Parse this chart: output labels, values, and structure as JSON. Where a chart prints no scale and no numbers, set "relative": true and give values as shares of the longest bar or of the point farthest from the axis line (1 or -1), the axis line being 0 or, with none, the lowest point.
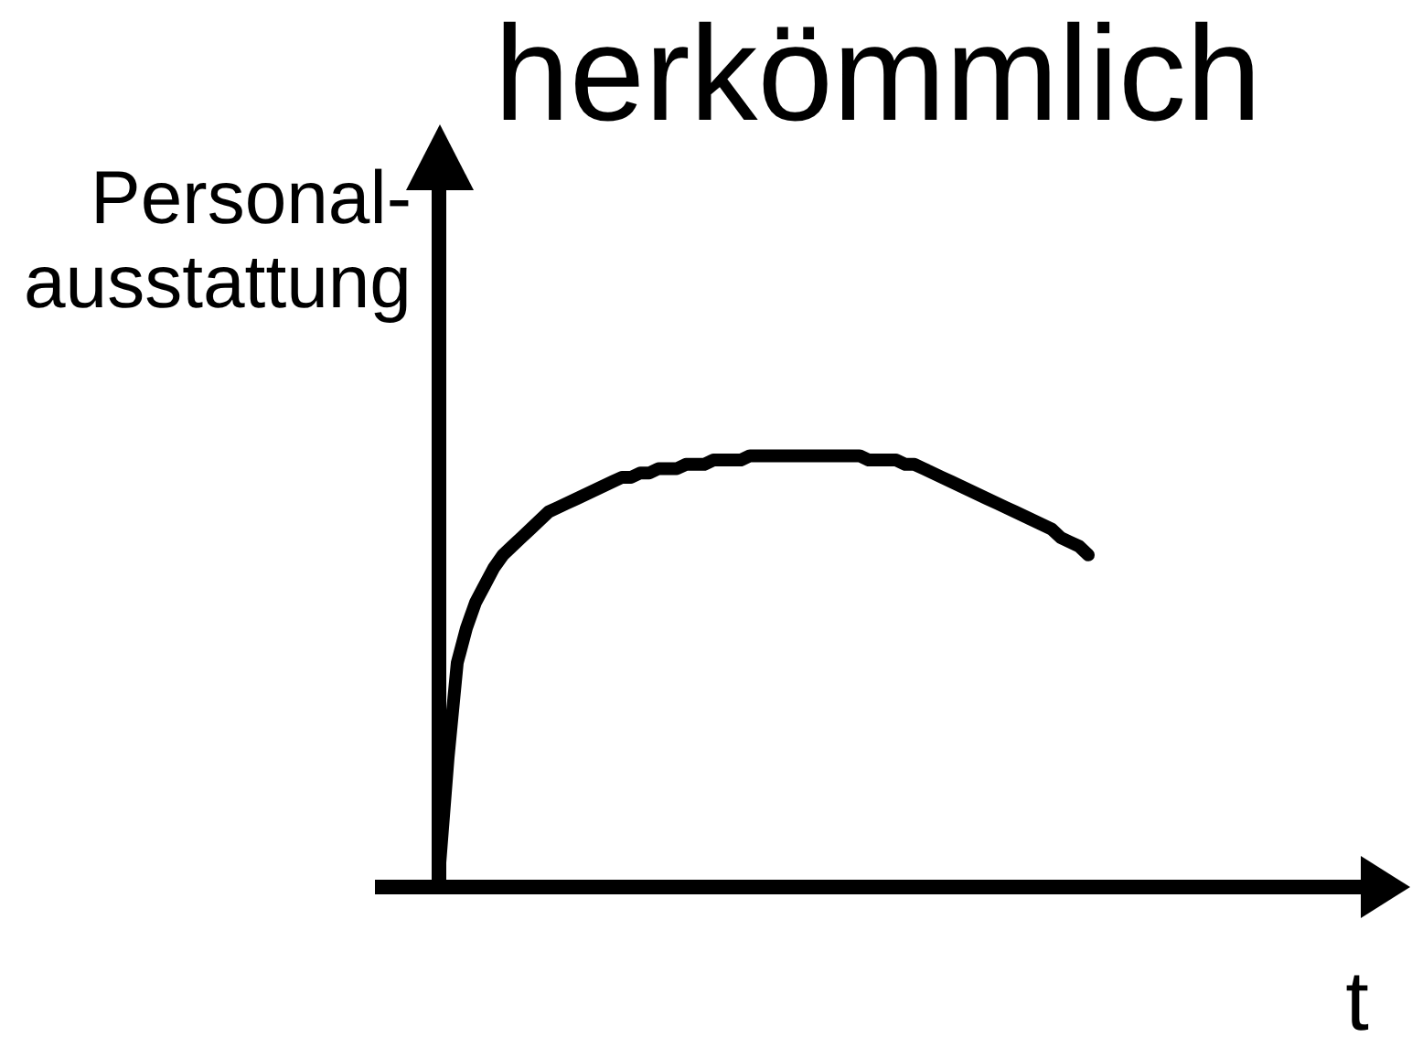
{
  "chart_data": {
    "type": "line",
    "title": "herkömmlich",
    "ylabel": "Personal-\nausstattung",
    "xlabel": "t",
    "relative": true,
    "marker": "none",
    "line_style": "solid",
    "categories": [
      null,
      null,
      null,
      null,
      null,
      null,
      null,
      null,
      null,
      null,
      null,
      null,
      null,
      null,
      null,
      null,
      null,
      null,
      null,
      null,
      null,
      null,
      null,
      null,
      null,
      null,
      null,
      null,
      null,
      null,
      null,
      null,
      null,
      null,
      null,
      null,
      null,
      null,
      null,
      null,
      null,
      null,
      null,
      null,
      null,
      null,
      null,
      null,
      null,
      null,
      null,
      null,
      null,
      null,
      null,
      null,
      null,
      null,
      null,
      null,
      null,
      null,
      null,
      null,
      null,
      null,
      null,
      null,
      null,
      null,
      null,
      null,
      null,
      null,
      null,
      null,
      null,
      null,
      null,
      null,
      null,
      null,
      null,
      null,
      null,
      null,
      null,
      null,
      null,
      null,
      null,
      null,
      null,
      null,
      null,
      null,
      null,
      null,
      null,
      null,
      null,
      null,
      null,
      null,
      null,
      null,
      null,
      null,
      null
    ],
    "series": [
      {
        "color": "#000000",
        "values": [
          null,
          null,
          null,
          null,
          null,
          null,
          null,
          0.03,
          0.3,
          0.52,
          0.6,
          0.66,
          0.7,
          0.74,
          0.77,
          0.79,
          0.81,
          0.83,
          0.85,
          0.87,
          0.88,
          0.89,
          0.9,
          0.91,
          0.92,
          0.93,
          0.94,
          0.95,
          0.95,
          0.96,
          0.96,
          0.97,
          0.97,
          0.97,
          0.98,
          0.98,
          0.98,
          0.99,
          0.99,
          0.99,
          0.99,
          1,
          1,
          1,
          1,
          1,
          1,
          1,
          1,
          1,
          1,
          1,
          1,
          1,
          0.99,
          0.99,
          0.99,
          0.99,
          0.98,
          0.98,
          0.97,
          0.96,
          0.95,
          0.94,
          0.93,
          0.92,
          0.91,
          0.9,
          0.89,
          0.88,
          0.87,
          0.86,
          0.85,
          0.84,
          0.83,
          0.81,
          0.8,
          0.79,
          0.77,
          null,
          null,
          null,
          null,
          null,
          null,
          null,
          null,
          null,
          null,
          null,
          null,
          null,
          null,
          null,
          null,
          null,
          null,
          null,
          null,
          null,
          null,
          null,
          null,
          null,
          null,
          null,
          null,
          null,
          null
        ]
      }
    ]
  }
}
